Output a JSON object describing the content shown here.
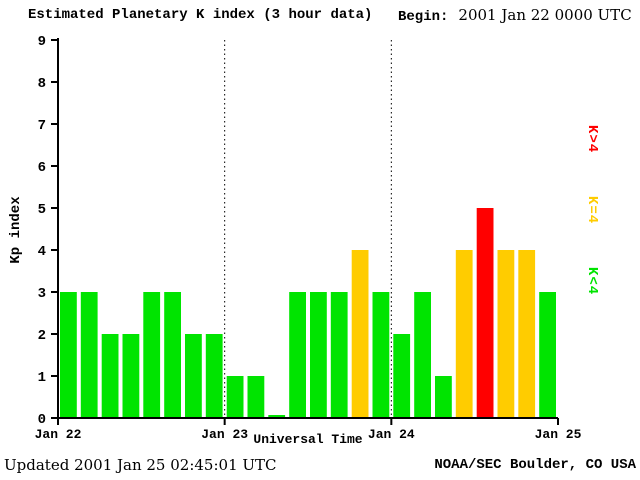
{
  "header": {
    "title": "Estimated Planetary K index (3 hour data)",
    "begin_label": "Begin:",
    "begin_value": "2001 Jan 22 0000 UTC"
  },
  "legend": {
    "items": [
      {
        "label": "K>4",
        "color": "#ff0000"
      },
      {
        "label": "K=4",
        "color": "#ffcc00"
      },
      {
        "label": "K<4",
        "color": "#00e400"
      }
    ]
  },
  "footer": {
    "updated": "Updated 2001 Jan 25 02:45:01 UTC",
    "credit": "NOAA/SEC Boulder, CO USA"
  },
  "chart_data": {
    "type": "bar",
    "title": "Estimated Planetary K index (3 hour data)",
    "xlabel": "Universal Time",
    "ylabel": "Kp index",
    "ylim": [
      0,
      9
    ],
    "yticks": [
      0,
      1,
      2,
      3,
      4,
      5,
      6,
      7,
      8,
      9
    ],
    "day_labels": [
      "Jan 22",
      "Jan 23",
      "Jan 24",
      "Jan 25"
    ],
    "interval_hours": 3,
    "bars_per_day": 8,
    "values": [
      3,
      3,
      2,
      2,
      3,
      3,
      2,
      2,
      1,
      1,
      0,
      3,
      3,
      3,
      4,
      3,
      2,
      3,
      1,
      4,
      5,
      4,
      4,
      3
    ],
    "color_rule": {
      "below_4": "#00e400",
      "equal_4": "#ffcc00",
      "above_4": "#ff0000"
    },
    "gridlines": "dotted vertical lines at day boundaries",
    "legend_position": "right"
  }
}
